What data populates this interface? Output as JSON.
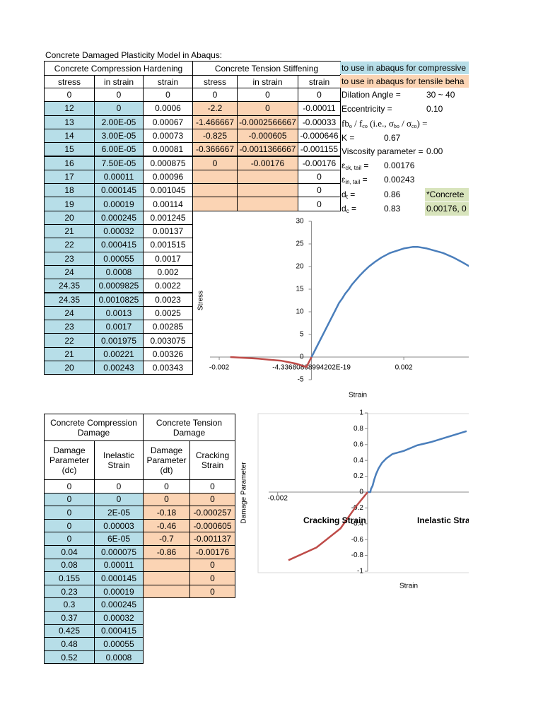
{
  "title": "Concrete Damaged Plasticity Model in Abaqus:",
  "table1": {
    "header_groups": [
      "Concrete Compression Hardening",
      "Concrete Tension Stiffening"
    ],
    "headers": [
      "stress",
      "in strain",
      "strain",
      "stress",
      "in strain",
      "strain"
    ],
    "rows": [
      [
        "0",
        "0",
        "0",
        "0",
        "0",
        "0"
      ],
      [
        "12",
        "0",
        "0.0006",
        "-2.2",
        "0",
        "-0.00011"
      ],
      [
        "13",
        "2.00E-05",
        "0.00067",
        "-1.466667",
        "-0.0002566667",
        "-0.00033"
      ],
      [
        "14",
        "3.00E-05",
        "0.00073",
        "-0.825",
        "-0.000605",
        "-0.000646"
      ],
      [
        "15",
        "6.00E-05",
        "0.00081",
        "-0.366667",
        "-0.0011366667",
        "-0.001155"
      ],
      [
        "16",
        "7.50E-05",
        "0.000875",
        "0",
        "-0.00176",
        "-0.00176"
      ],
      [
        "17",
        "0.00011",
        "0.00096",
        null,
        null,
        "0"
      ],
      [
        "18",
        "0.000145",
        "0.001045",
        null,
        null,
        "0"
      ],
      [
        "19",
        "0.00019",
        "0.00114",
        null,
        null,
        "0"
      ],
      [
        "20",
        "0.000245",
        "0.001245"
      ],
      [
        "21",
        "0.00032",
        "0.00137"
      ],
      [
        "22",
        "0.000415",
        "0.001515"
      ],
      [
        "23",
        "0.00055",
        "0.0017"
      ],
      [
        "24",
        "0.0008",
        "0.002"
      ],
      [
        "24.35",
        "0.0009825",
        "0.0022"
      ],
      [
        "24.35",
        "0.0010825",
        "0.0023"
      ],
      [
        "24",
        "0.0013",
        "0.0025"
      ],
      [
        "23",
        "0.0017",
        "0.00285"
      ],
      [
        "22",
        "0.001975",
        "0.003075"
      ],
      [
        "21",
        "0.00221",
        "0.00326"
      ],
      [
        "20",
        "0.00243",
        "0.00343"
      ]
    ]
  },
  "notes": {
    "compressive_note": "to use in abaqus for compressive",
    "tensile_note": "to use in abaqus for tensile beha",
    "params": [
      {
        "label": [
          "Dilation Angle ="
        ],
        "value": "30 ~ 40"
      },
      {
        "label": [
          "Eccentricity ="
        ],
        "value": "0.10"
      },
      {
        "label": [
          "fb",
          "o",
          " / f",
          "co",
          " (i.e., σ",
          "bo",
          " / σ",
          "co",
          ") ="
        ]
      },
      {
        "label": [
          "K ="
        ],
        "value": "0.67"
      },
      {
        "label": [
          "Viscosity parameter ="
        ],
        "value": "0.00"
      },
      {
        "label": [
          "ε",
          "ck, tail",
          " ="
        ],
        "value": "0.00176"
      },
      {
        "label": [
          "ε",
          "in, tail",
          " ="
        ],
        "value": "0.00243"
      },
      {
        "label": [
          "d",
          "t",
          " ="
        ],
        "value": "0.86"
      },
      {
        "label": [
          "d",
          "c",
          " ="
        ],
        "value": "0.83"
      }
    ],
    "remarks": [
      "*Concrete",
      "0.00176, 0"
    ]
  },
  "table2": {
    "header_groups": [
      "Concrete Compression Damage",
      "Concrete Tension Damage"
    ],
    "headers": [
      "Damage Parameter (dc)",
      "Inelastic Strain",
      "Damage Parameter (dt)",
      "Cracking Strain"
    ],
    "rows": [
      [
        "0",
        "0",
        "0",
        "0"
      ],
      [
        "0",
        "0",
        "0",
        "0"
      ],
      [
        "0",
        "2E-05",
        "-0.18",
        "-0.000257"
      ],
      [
        "0",
        "0.00003",
        "-0.46",
        "-0.000605"
      ],
      [
        "0",
        "6E-05",
        "-0.7",
        "-0.001137"
      ],
      [
        "0.04",
        "0.000075",
        "-0.86",
        "-0.00176"
      ],
      [
        "0.08",
        "0.00011",
        null,
        "0"
      ],
      [
        "0.155",
        "0.000145",
        null,
        "0"
      ],
      [
        "0.23",
        "0.00019",
        null,
        "0"
      ],
      [
        "0.3",
        "0.000245"
      ],
      [
        "0.37",
        "0.00032"
      ],
      [
        "0.425",
        "0.000415"
      ],
      [
        "0.48",
        "0.00055"
      ],
      [
        "0.52",
        "0.0008"
      ]
    ]
  },
  "chart_data": [
    {
      "type": "line",
      "x_label": "Strain",
      "y_label": "Stress",
      "xlim": [
        -0.0022,
        0.0035
      ],
      "ylim": [
        -5,
        30
      ],
      "xticks": [
        -0.002,
        {
          "value": -4.33680868994202e-19,
          "label": "-4.33680868994202E-19"
        },
        0.002
      ],
      "yticks": [
        -5,
        0,
        5,
        10,
        15,
        20,
        25,
        30
      ],
      "series": [
        {
          "color": "#4a7ebb",
          "x": [
            0,
            0.0006,
            0.00067,
            0.00073,
            0.00081,
            0.000875,
            0.00096,
            0.001045,
            0.00114,
            0.001245,
            0.00137,
            0.001515,
            0.0017,
            0.002,
            0.0022,
            0.0023,
            0.0025,
            0.00285,
            0.003075,
            0.00326,
            0.00343
          ],
          "values": [
            0,
            12,
            13,
            14,
            15,
            16,
            17,
            18,
            19,
            20,
            21,
            22,
            23,
            24,
            24.35,
            24.35,
            24,
            23,
            22,
            21,
            20
          ]
        },
        {
          "color": "#be4b48",
          "x": [
            -0.00176,
            -0.001155,
            -0.000646,
            -0.00033,
            -0.00011,
            0
          ],
          "values": [
            0,
            -0.366667,
            -0.825,
            -1.466667,
            -2.2,
            0
          ]
        }
      ]
    },
    {
      "type": "line",
      "x_label": "Strain",
      "y_label": "Damage Parameter",
      "annotations": [
        "Cracking Strain",
        "Inelastic Strain"
      ],
      "xlim": [
        -0.0022,
        0.0025
      ],
      "ylim": [
        -1,
        1
      ],
      "xticks": [
        -0.002
      ],
      "yticks": [
        -1,
        -0.8,
        -0.6,
        -0.4,
        -0.2,
        0,
        0.2,
        0.4,
        0.6,
        0.8,
        1
      ],
      "frame": true,
      "series": [
        {
          "color": "#4a7ebb",
          "x": [
            0,
            2e-05,
            3e-05,
            6e-05,
            7.5e-05,
            0.00011,
            0.000145,
            0.00019,
            0.000245,
            0.00032,
            0.000415,
            0.00055,
            0.0008,
            0.0011,
            0.0014,
            0.0018,
            0.0022
          ],
          "values": [
            0,
            0,
            0,
            0,
            0.04,
            0.08,
            0.155,
            0.23,
            0.3,
            0.37,
            0.425,
            0.48,
            0.52,
            0.59,
            0.63,
            0.7,
            0.77
          ]
        },
        {
          "color": "#be4b48",
          "x": [
            -0.00176,
            -0.001137,
            -0.000605,
            -0.000257,
            0
          ],
          "values": [
            -0.86,
            -0.7,
            -0.46,
            -0.18,
            0
          ]
        }
      ]
    }
  ]
}
